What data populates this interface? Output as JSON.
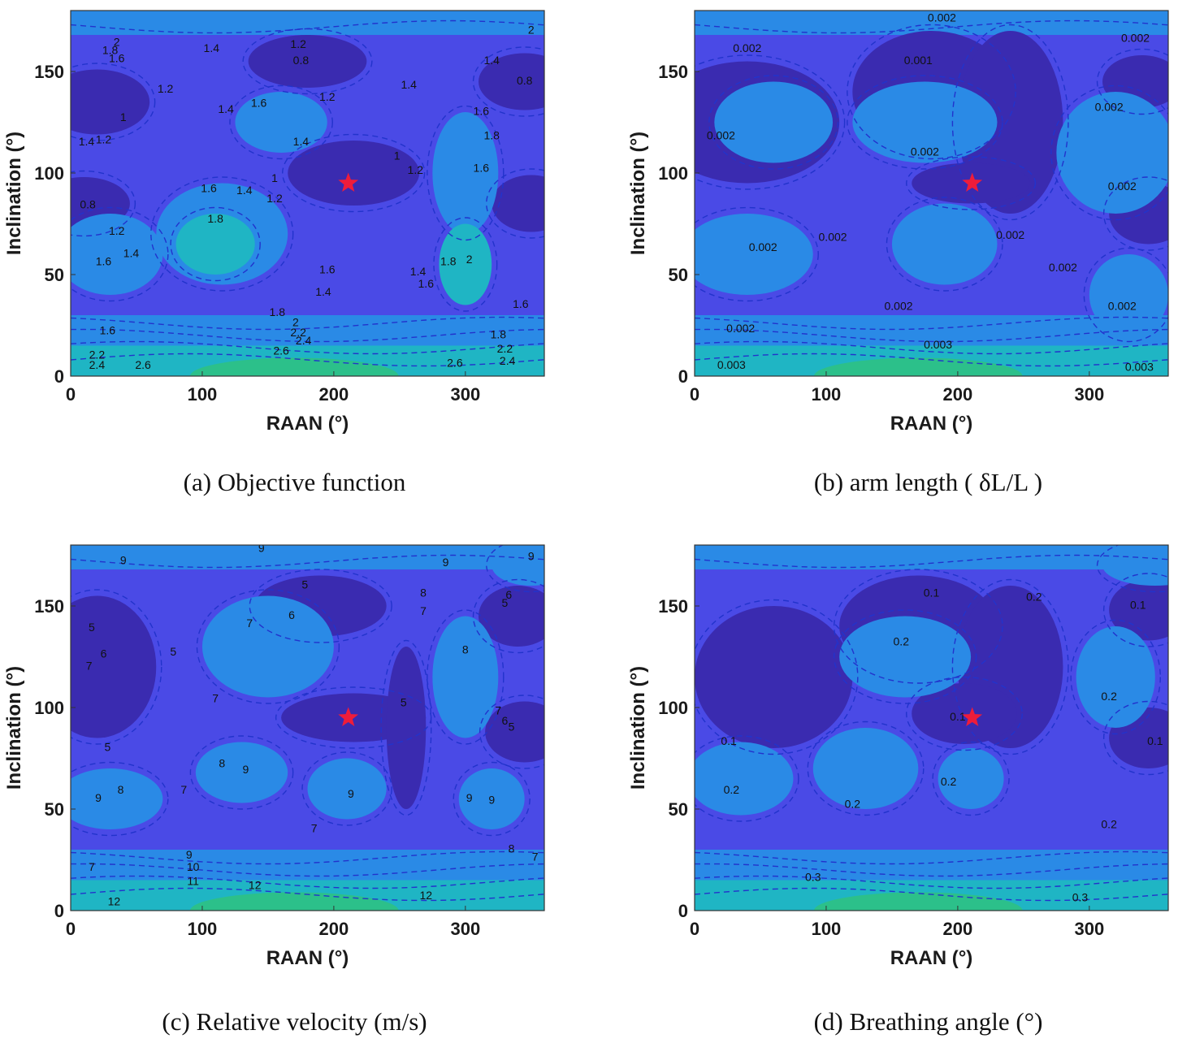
{
  "chart_data": [
    {
      "type": "heatmap",
      "caption": "(a) Objective function",
      "xlabel": "RAAN (°)",
      "ylabel": "Inclination (°)",
      "xlim": [
        0,
        360
      ],
      "ylim": [
        0,
        180
      ],
      "xticks": [
        "0",
        "100",
        "200",
        "300"
      ],
      "yticks": [
        "0",
        "50",
        "100",
        "150"
      ],
      "contour_style": "filled, dashed blue lines",
      "colormap": [
        "#3a2bb0",
        "#4a4ae6",
        "#2a8ae6",
        "#1fb5c4",
        "#2cc08a"
      ],
      "levels": [
        0.8,
        1,
        1.2,
        1.4,
        1.6,
        1.8,
        2,
        2.2,
        2.4,
        2.6
      ],
      "contour_labels": [
        {
          "text": "0.8",
          "x": 13,
          "y": 84
        },
        {
          "text": "0.8",
          "x": 175,
          "y": 155
        },
        {
          "text": "0.8",
          "x": 345,
          "y": 145
        },
        {
          "text": "1",
          "x": 40,
          "y": 127
        },
        {
          "text": "1",
          "x": 155,
          "y": 97
        },
        {
          "text": "1",
          "x": 248,
          "y": 108
        },
        {
          "text": "1.2",
          "x": 72,
          "y": 141
        },
        {
          "text": "1.2",
          "x": 25,
          "y": 116
        },
        {
          "text": "1.2",
          "x": 35,
          "y": 71
        },
        {
          "text": "1.2",
          "x": 195,
          "y": 137
        },
        {
          "text": "1.2",
          "x": 155,
          "y": 87
        },
        {
          "text": "1.2",
          "x": 262,
          "y": 101
        },
        {
          "text": "1.2",
          "x": 173,
          "y": 163
        },
        {
          "text": "1.4",
          "x": 107,
          "y": 161
        },
        {
          "text": "1.4",
          "x": 12,
          "y": 115
        },
        {
          "text": "1.4",
          "x": 118,
          "y": 131
        },
        {
          "text": "1.4",
          "x": 175,
          "y": 115
        },
        {
          "text": "1.4",
          "x": 132,
          "y": 91
        },
        {
          "text": "1.4",
          "x": 46,
          "y": 60
        },
        {
          "text": "1.4",
          "x": 257,
          "y": 143
        },
        {
          "text": "1.4",
          "x": 264,
          "y": 51
        },
        {
          "text": "1.4",
          "x": 192,
          "y": 41
        },
        {
          "text": "1.4",
          "x": 320,
          "y": 155
        },
        {
          "text": "1.6",
          "x": 35,
          "y": 156
        },
        {
          "text": "1.6",
          "x": 143,
          "y": 134
        },
        {
          "text": "1.6",
          "x": 312,
          "y": 130
        },
        {
          "text": "1.6",
          "x": 105,
          "y": 92
        },
        {
          "text": "1.6",
          "x": 25,
          "y": 56
        },
        {
          "text": "1.6",
          "x": 195,
          "y": 52
        },
        {
          "text": "1.6",
          "x": 270,
          "y": 45
        },
        {
          "text": "1.6",
          "x": 312,
          "y": 102
        },
        {
          "text": "1.6",
          "x": 342,
          "y": 35
        },
        {
          "text": "1.6",
          "x": 28,
          "y": 22
        },
        {
          "text": "1.8",
          "x": 30,
          "y": 160
        },
        {
          "text": "1.8",
          "x": 320,
          "y": 118
        },
        {
          "text": "1.8",
          "x": 110,
          "y": 77
        },
        {
          "text": "1.8",
          "x": 287,
          "y": 56
        },
        {
          "text": "1.8",
          "x": 157,
          "y": 31
        },
        {
          "text": "1.8",
          "x": 325,
          "y": 20
        },
        {
          "text": "2",
          "x": 35,
          "y": 164
        },
        {
          "text": "2",
          "x": 303,
          "y": 57
        },
        {
          "text": "2",
          "x": 171,
          "y": 26
        },
        {
          "text": "2",
          "x": 350,
          "y": 170
        },
        {
          "text": "2.2",
          "x": 20,
          "y": 10
        },
        {
          "text": "2.2",
          "x": 173,
          "y": 21
        },
        {
          "text": "2.2",
          "x": 330,
          "y": 13
        },
        {
          "text": "2.4",
          "x": 20,
          "y": 5
        },
        {
          "text": "2.4",
          "x": 177,
          "y": 17
        },
        {
          "text": "2.4",
          "x": 332,
          "y": 7
        },
        {
          "text": "2.6",
          "x": 55,
          "y": 5
        },
        {
          "text": "2.6",
          "x": 160,
          "y": 12
        },
        {
          "text": "2.6",
          "x": 292,
          "y": 6
        }
      ],
      "marker": {
        "symbol": "star",
        "color": "#ee1c3a",
        "x": 211,
        "y": 95
      }
    },
    {
      "type": "heatmap",
      "caption": "(b) arm length ( δL/L )",
      "xlabel": "RAAN (°)",
      "ylabel": "Inclination (°)",
      "xlim": [
        0,
        360
      ],
      "ylim": [
        0,
        180
      ],
      "xticks": [
        "0",
        "100",
        "200",
        "300"
      ],
      "yticks": [
        "0",
        "50",
        "100",
        "150"
      ],
      "contour_style": "filled, dashed blue lines",
      "colormap": [
        "#3a2bb0",
        "#4a4ae6",
        "#2a8ae6",
        "#1fb5c4",
        "#2cc08a"
      ],
      "levels": [
        0.001,
        0.002,
        0.003
      ],
      "contour_labels": [
        {
          "text": "0.002",
          "x": 40,
          "y": 161
        },
        {
          "text": "0.002",
          "x": 188,
          "y": 176
        },
        {
          "text": "0.002",
          "x": 335,
          "y": 166
        },
        {
          "text": "0.001",
          "x": 170,
          "y": 155
        },
        {
          "text": "0.002",
          "x": 20,
          "y": 118
        },
        {
          "text": "0.002",
          "x": 175,
          "y": 110
        },
        {
          "text": "0.002",
          "x": 315,
          "y": 132
        },
        {
          "text": "0.002",
          "x": 325,
          "y": 93
        },
        {
          "text": "0.002",
          "x": 52,
          "y": 63
        },
        {
          "text": "0.002",
          "x": 105,
          "y": 68
        },
        {
          "text": "0.002",
          "x": 240,
          "y": 69
        },
        {
          "text": "0.002",
          "x": 280,
          "y": 53
        },
        {
          "text": "0.002",
          "x": 155,
          "y": 34
        },
        {
          "text": "0.002",
          "x": 325,
          "y": 34
        },
        {
          "text": "0.002",
          "x": 35,
          "y": 23
        },
        {
          "text": "0.003",
          "x": 185,
          "y": 15
        },
        {
          "text": "0.003",
          "x": 28,
          "y": 5
        },
        {
          "text": "0.003",
          "x": 338,
          "y": 4
        }
      ],
      "marker": {
        "symbol": "star",
        "color": "#ee1c3a",
        "x": 211,
        "y": 95
      }
    },
    {
      "type": "heatmap",
      "caption": "(c) Relative velocity (m/s)",
      "xlabel": "RAAN (°)",
      "ylabel": "Inclination (°)",
      "xlim": [
        0,
        360
      ],
      "ylim": [
        0,
        180
      ],
      "xticks": [
        "0",
        "100",
        "200",
        "300"
      ],
      "yticks": [
        "0",
        "50",
        "100",
        "150"
      ],
      "contour_style": "filled, dashed blue lines",
      "colormap": [
        "#3a2bb0",
        "#4a4ae6",
        "#2a8ae6",
        "#1fb5c4",
        "#2cc08a"
      ],
      "levels": [
        5,
        6,
        7,
        8,
        9,
        10,
        11,
        12
      ],
      "contour_labels": [
        {
          "text": "9",
          "x": 40,
          "y": 172
        },
        {
          "text": "9",
          "x": 145,
          "y": 178
        },
        {
          "text": "9",
          "x": 285,
          "y": 171
        },
        {
          "text": "9",
          "x": 350,
          "y": 174
        },
        {
          "text": "8",
          "x": 268,
          "y": 156
        },
        {
          "text": "7",
          "x": 268,
          "y": 147
        },
        {
          "text": "5",
          "x": 178,
          "y": 160
        },
        {
          "text": "6",
          "x": 168,
          "y": 145
        },
        {
          "text": "7",
          "x": 136,
          "y": 141
        },
        {
          "text": "5",
          "x": 16,
          "y": 139
        },
        {
          "text": "6",
          "x": 25,
          "y": 126
        },
        {
          "text": "7",
          "x": 14,
          "y": 120
        },
        {
          "text": "5",
          "x": 78,
          "y": 127
        },
        {
          "text": "5",
          "x": 330,
          "y": 151
        },
        {
          "text": "6",
          "x": 333,
          "y": 155
        },
        {
          "text": "8",
          "x": 300,
          "y": 128
        },
        {
          "text": "7",
          "x": 110,
          "y": 104
        },
        {
          "text": "5",
          "x": 253,
          "y": 102
        },
        {
          "text": "7",
          "x": 325,
          "y": 98
        },
        {
          "text": "6",
          "x": 330,
          "y": 93
        },
        {
          "text": "5",
          "x": 335,
          "y": 90
        },
        {
          "text": "5",
          "x": 28,
          "y": 80
        },
        {
          "text": "8",
          "x": 115,
          "y": 72
        },
        {
          "text": "9",
          "x": 133,
          "y": 69
        },
        {
          "text": "9",
          "x": 21,
          "y": 55
        },
        {
          "text": "8",
          "x": 38,
          "y": 59
        },
        {
          "text": "7",
          "x": 86,
          "y": 59
        },
        {
          "text": "9",
          "x": 213,
          "y": 57
        },
        {
          "text": "9",
          "x": 303,
          "y": 55
        },
        {
          "text": "9",
          "x": 320,
          "y": 54
        },
        {
          "text": "7",
          "x": 185,
          "y": 40
        },
        {
          "text": "8",
          "x": 335,
          "y": 30
        },
        {
          "text": "7",
          "x": 353,
          "y": 26
        },
        {
          "text": "7",
          "x": 16,
          "y": 21
        },
        {
          "text": "9",
          "x": 90,
          "y": 27
        },
        {
          "text": "10",
          "x": 93,
          "y": 21
        },
        {
          "text": "11",
          "x": 93,
          "y": 14
        },
        {
          "text": "12",
          "x": 33,
          "y": 4
        },
        {
          "text": "12",
          "x": 140,
          "y": 12
        },
        {
          "text": "12",
          "x": 270,
          "y": 7
        }
      ],
      "marker": {
        "symbol": "star",
        "color": "#ee1c3a",
        "x": 211,
        "y": 95
      }
    },
    {
      "type": "heatmap",
      "caption": "(d) Breathing angle (°)",
      "xlabel": "RAAN (°)",
      "ylabel": "Inclination (°)",
      "xlim": [
        0,
        360
      ],
      "ylim": [
        0,
        180
      ],
      "xticks": [
        "0",
        "100",
        "200",
        "300"
      ],
      "yticks": [
        "0",
        "50",
        "100",
        "150"
      ],
      "contour_style": "filled, dashed blue lines",
      "colormap": [
        "#3a2bb0",
        "#4a4ae6",
        "#2a8ae6",
        "#1fb5c4",
        "#2cc08a"
      ],
      "levels": [
        0.1,
        0.2,
        0.3
      ],
      "contour_labels": [
        {
          "text": "0.1",
          "x": 180,
          "y": 156
        },
        {
          "text": "0.2",
          "x": 258,
          "y": 154
        },
        {
          "text": "0.1",
          "x": 337,
          "y": 150
        },
        {
          "text": "0.2",
          "x": 157,
          "y": 132
        },
        {
          "text": "0.2",
          "x": 315,
          "y": 105
        },
        {
          "text": "0.1",
          "x": 200,
          "y": 95
        },
        {
          "text": "0.1",
          "x": 26,
          "y": 83
        },
        {
          "text": "0.1",
          "x": 350,
          "y": 83
        },
        {
          "text": "0.2",
          "x": 28,
          "y": 59
        },
        {
          "text": "0.2",
          "x": 193,
          "y": 63
        },
        {
          "text": "0.2",
          "x": 120,
          "y": 52
        },
        {
          "text": "0.2",
          "x": 315,
          "y": 42
        },
        {
          "text": "0.3",
          "x": 90,
          "y": 16
        },
        {
          "text": "0.3",
          "x": 293,
          "y": 6
        }
      ],
      "marker": {
        "symbol": "star",
        "color": "#ee1c3a",
        "x": 211,
        "y": 95
      }
    }
  ]
}
